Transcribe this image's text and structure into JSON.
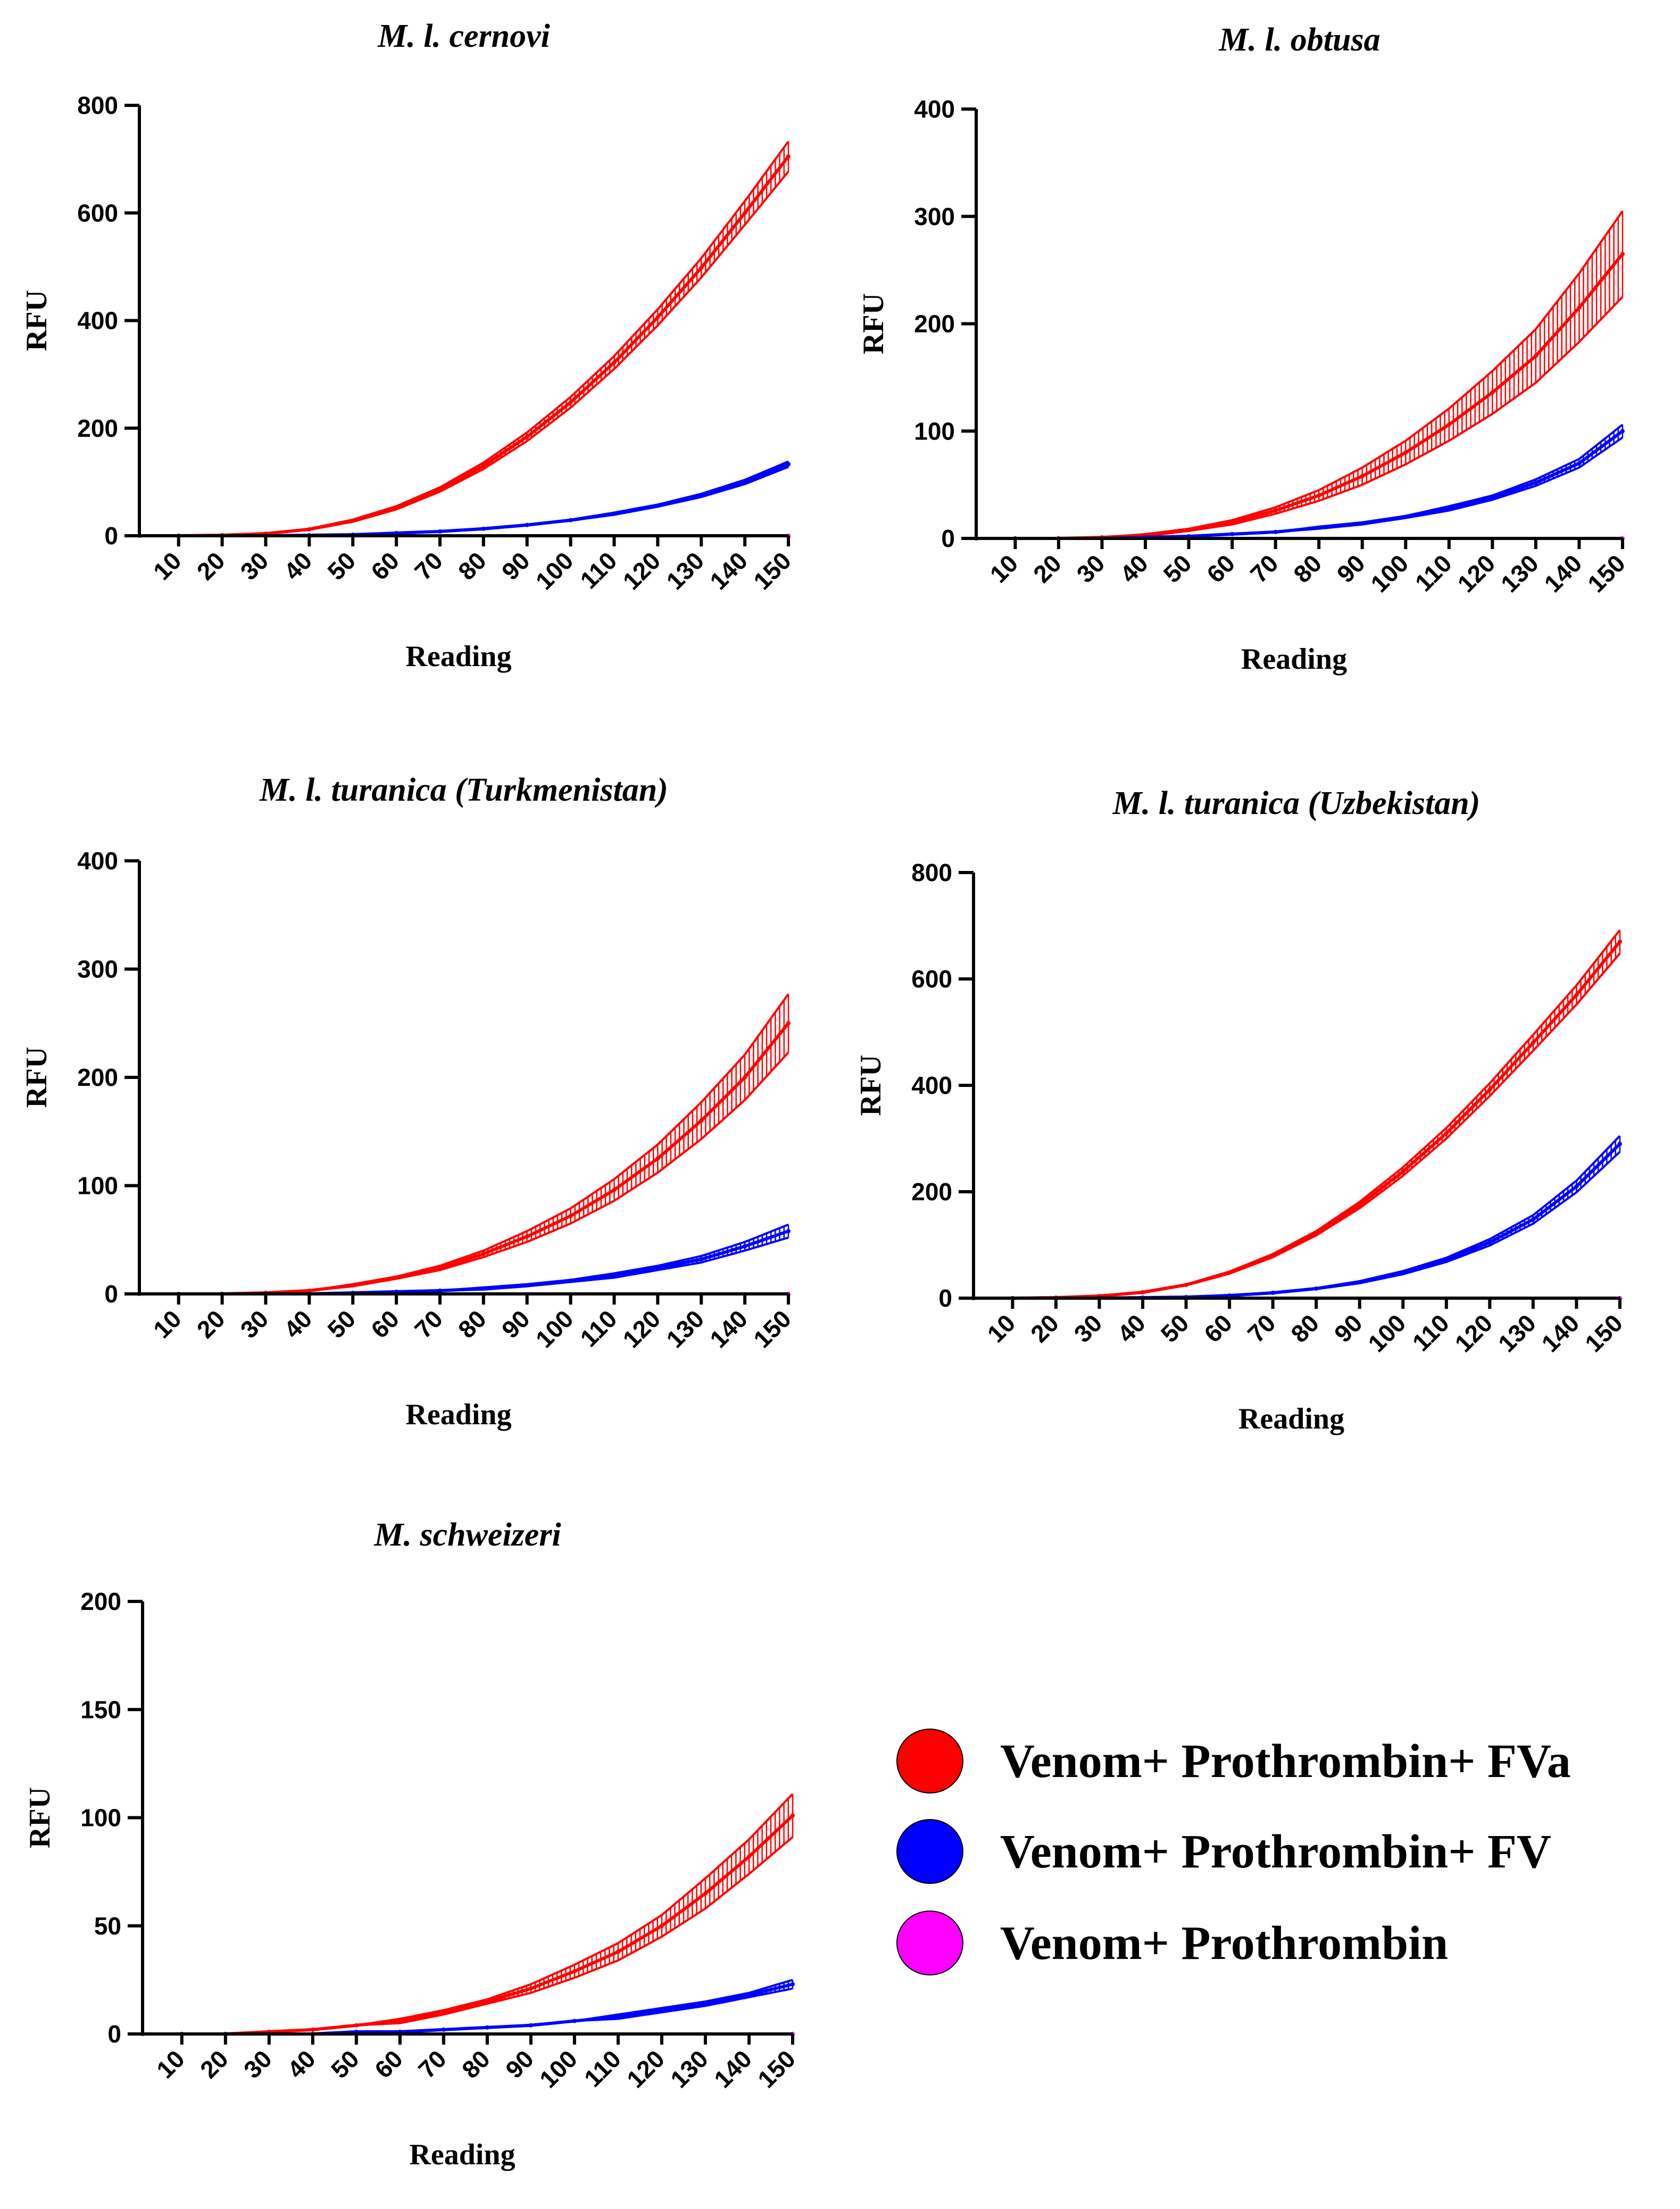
{
  "colors": {
    "fva": "#ff0000",
    "fv": "#0000ff",
    "prothrombin_only": "#ff00ff"
  },
  "legend": [
    {
      "label": "Venom+ Prothrombin+ FVa",
      "color": "#ff0000"
    },
    {
      "label": "Venom+ Prothrombin+ FV",
      "color": "#0000ff"
    },
    {
      "label": "Venom+ Prothrombin",
      "color": "#ff00ff"
    }
  ],
  "chart_data": [
    {
      "type": "line",
      "title": "M. l. cernovi",
      "xlabel": "Reading",
      "ylabel": "RFU",
      "xlim": [
        1,
        150
      ],
      "ylim": [
        0,
        800
      ],
      "yticks": [
        0,
        200,
        400,
        600,
        800
      ],
      "xticks": [
        10,
        20,
        30,
        40,
        50,
        60,
        70,
        80,
        90,
        100,
        110,
        120,
        130,
        140,
        150
      ],
      "series": [
        {
          "name": "Venom+ Prothrombin+ FVa",
          "x": [
            1,
            10,
            20,
            30,
            40,
            50,
            60,
            70,
            80,
            90,
            100,
            110,
            120,
            130,
            140,
            150
          ],
          "values": [
            0,
            0,
            1,
            4,
            12,
            28,
            52,
            86,
            130,
            184,
            248,
            322,
            406,
            498,
            600,
            705
          ],
          "error": [
            0,
            0,
            0,
            0,
            1,
            2,
            3,
            4,
            6,
            8,
            10,
            12,
            15,
            18,
            22,
            28
          ]
        },
        {
          "name": "Venom+ Prothrombin+ FV",
          "x": [
            1,
            10,
            20,
            30,
            40,
            50,
            60,
            70,
            80,
            90,
            100,
            110,
            120,
            130,
            140,
            150
          ],
          "values": [
            0,
            0,
            0,
            0,
            1,
            2,
            5,
            8,
            13,
            20,
            29,
            41,
            56,
            75,
            100,
            133
          ],
          "error": [
            0,
            0,
            0,
            0,
            0,
            0,
            0,
            0,
            1,
            1,
            1,
            2,
            2,
            3,
            4,
            5
          ]
        },
        {
          "name": "Venom+ Prothrombin",
          "x": [
            1,
            150
          ],
          "values": [
            0,
            0
          ],
          "error": [
            0,
            0
          ]
        }
      ]
    },
    {
      "type": "line",
      "title": "M. l. obtusa",
      "xlabel": "Reading",
      "ylabel": "RFU",
      "xlim": [
        1,
        150
      ],
      "ylim": [
        0,
        400
      ],
      "yticks": [
        0,
        100,
        200,
        300,
        400
      ],
      "xticks": [
        10,
        20,
        30,
        40,
        50,
        60,
        70,
        80,
        90,
        100,
        110,
        120,
        130,
        140,
        150
      ],
      "series": [
        {
          "name": "Venom+ Prothrombin+ FVa",
          "x": [
            1,
            10,
            20,
            30,
            40,
            50,
            60,
            70,
            80,
            90,
            100,
            110,
            120,
            130,
            140,
            150
          ],
          "values": [
            0,
            0,
            0,
            1,
            3,
            8,
            15,
            26,
            40,
            58,
            80,
            106,
            136,
            170,
            215,
            265
          ],
          "error": [
            0,
            0,
            0,
            0,
            1,
            1,
            2,
            3,
            5,
            8,
            11,
            15,
            20,
            25,
            32,
            40
          ]
        },
        {
          "name": "Venom+ Prothrombin+ FV",
          "x": [
            1,
            10,
            20,
            30,
            40,
            50,
            60,
            70,
            80,
            90,
            100,
            110,
            120,
            130,
            140,
            150
          ],
          "values": [
            0,
            0,
            0,
            0,
            1,
            2,
            4,
            6,
            10,
            14,
            20,
            28,
            38,
            52,
            70,
            100
          ],
          "error": [
            0,
            0,
            0,
            0,
            0,
            0,
            0,
            0,
            1,
            1,
            1,
            2,
            2,
            3,
            4,
            6
          ]
        },
        {
          "name": "Venom+ Prothrombin",
          "x": [
            1,
            150
          ],
          "values": [
            0,
            0
          ],
          "error": [
            0,
            0
          ]
        }
      ]
    },
    {
      "type": "line",
      "title": "M. l. turanica (Turkmenistan)",
      "xlabel": "Reading",
      "ylabel": "RFU",
      "xlim": [
        1,
        150
      ],
      "ylim": [
        0,
        400
      ],
      "yticks": [
        0,
        100,
        200,
        300,
        400
      ],
      "xticks": [
        10,
        20,
        30,
        40,
        50,
        60,
        70,
        80,
        90,
        100,
        110,
        120,
        130,
        140,
        150
      ],
      "series": [
        {
          "name": "Venom+ Prothrombin+ FVa",
          "x": [
            1,
            10,
            20,
            30,
            40,
            50,
            60,
            70,
            80,
            90,
            100,
            110,
            120,
            130,
            140,
            150
          ],
          "values": [
            0,
            0,
            0,
            1,
            3,
            8,
            15,
            24,
            37,
            53,
            72,
            96,
            125,
            160,
            200,
            250
          ],
          "error": [
            0,
            0,
            0,
            0,
            0,
            1,
            1,
            2,
            3,
            5,
            7,
            10,
            13,
            17,
            21,
            27
          ]
        },
        {
          "name": "Venom+ Prothrombin+ FV",
          "x": [
            1,
            10,
            20,
            30,
            40,
            50,
            60,
            70,
            80,
            90,
            100,
            110,
            120,
            130,
            140,
            150
          ],
          "values": [
            0,
            0,
            0,
            0,
            0,
            1,
            2,
            3,
            5,
            8,
            12,
            17,
            24,
            32,
            44,
            58
          ],
          "error": [
            0,
            0,
            0,
            0,
            0,
            0,
            0,
            0,
            1,
            1,
            1,
            2,
            2,
            3,
            4,
            6
          ]
        },
        {
          "name": "Venom+ Prothrombin",
          "x": [
            1,
            150
          ],
          "values": [
            0,
            0
          ],
          "error": [
            0,
            0
          ]
        }
      ]
    },
    {
      "type": "line",
      "title": "M. l. turanica (Uzbekistan)",
      "xlabel": "Reading",
      "ylabel": "RFU",
      "xlim": [
        1,
        150
      ],
      "ylim": [
        0,
        800
      ],
      "yticks": [
        0,
        200,
        400,
        600,
        800
      ],
      "xticks": [
        10,
        20,
        30,
        40,
        50,
        60,
        70,
        80,
        90,
        100,
        110,
        120,
        130,
        140,
        150
      ],
      "series": [
        {
          "name": "Venom+ Prothrombin+ FVa",
          "x": [
            1,
            10,
            20,
            30,
            40,
            50,
            60,
            70,
            80,
            90,
            100,
            110,
            120,
            130,
            140,
            150
          ],
          "values": [
            0,
            0,
            1,
            4,
            11,
            25,
            48,
            80,
            122,
            175,
            238,
            310,
            392,
            480,
            570,
            670
          ],
          "error": [
            0,
            0,
            0,
            0,
            1,
            1,
            2,
            3,
            4,
            6,
            8,
            10,
            12,
            15,
            18,
            22
          ]
        },
        {
          "name": "Venom+ Prothrombin+ FV",
          "x": [
            1,
            10,
            20,
            30,
            40,
            50,
            60,
            70,
            80,
            90,
            100,
            110,
            120,
            130,
            140,
            150
          ],
          "values": [
            0,
            0,
            0,
            0,
            1,
            2,
            5,
            10,
            18,
            30,
            48,
            72,
            105,
            148,
            210,
            290
          ],
          "error": [
            0,
            0,
            0,
            0,
            0,
            0,
            0,
            1,
            1,
            2,
            3,
            4,
            6,
            8,
            11,
            15
          ]
        },
        {
          "name": "Venom+ Prothrombin",
          "x": [
            1,
            150
          ],
          "values": [
            0,
            0
          ],
          "error": [
            0,
            0
          ]
        }
      ]
    },
    {
      "type": "line",
      "title": "M. schweizeri",
      "xlabel": "Reading",
      "ylabel": "RFU",
      "xlim": [
        1,
        150
      ],
      "ylim": [
        0,
        200
      ],
      "yticks": [
        0,
        50,
        100,
        150,
        200
      ],
      "xticks": [
        10,
        20,
        30,
        40,
        50,
        60,
        70,
        80,
        90,
        100,
        110,
        120,
        130,
        140,
        150
      ],
      "series": [
        {
          "name": "Venom+ Prothrombin+ FVa",
          "x": [
            1,
            10,
            20,
            30,
            40,
            50,
            60,
            70,
            80,
            90,
            100,
            110,
            120,
            130,
            140,
            150
          ],
          "values": [
            0,
            0,
            0,
            1,
            2,
            4,
            6,
            10,
            15,
            21,
            29,
            38,
            50,
            65,
            82,
            101
          ],
          "error": [
            0,
            0,
            0,
            0,
            0,
            0,
            1,
            1,
            1,
            2,
            3,
            4,
            5,
            7,
            8,
            10
          ]
        },
        {
          "name": "Venom+ Prothrombin+ FV",
          "x": [
            1,
            10,
            20,
            30,
            40,
            50,
            60,
            70,
            80,
            90,
            100,
            110,
            120,
            130,
            140,
            150
          ],
          "values": [
            0,
            0,
            0,
            0,
            0,
            1,
            1,
            2,
            3,
            4,
            6,
            8,
            11,
            14,
            18,
            23
          ],
          "error": [
            0,
            0,
            0,
            0,
            0,
            0,
            0,
            0,
            0,
            0,
            0,
            1,
            1,
            1,
            1,
            2
          ]
        },
        {
          "name": "Venom+ Prothrombin",
          "x": [
            1,
            150
          ],
          "values": [
            0,
            0
          ],
          "error": [
            0,
            0
          ]
        }
      ]
    }
  ]
}
